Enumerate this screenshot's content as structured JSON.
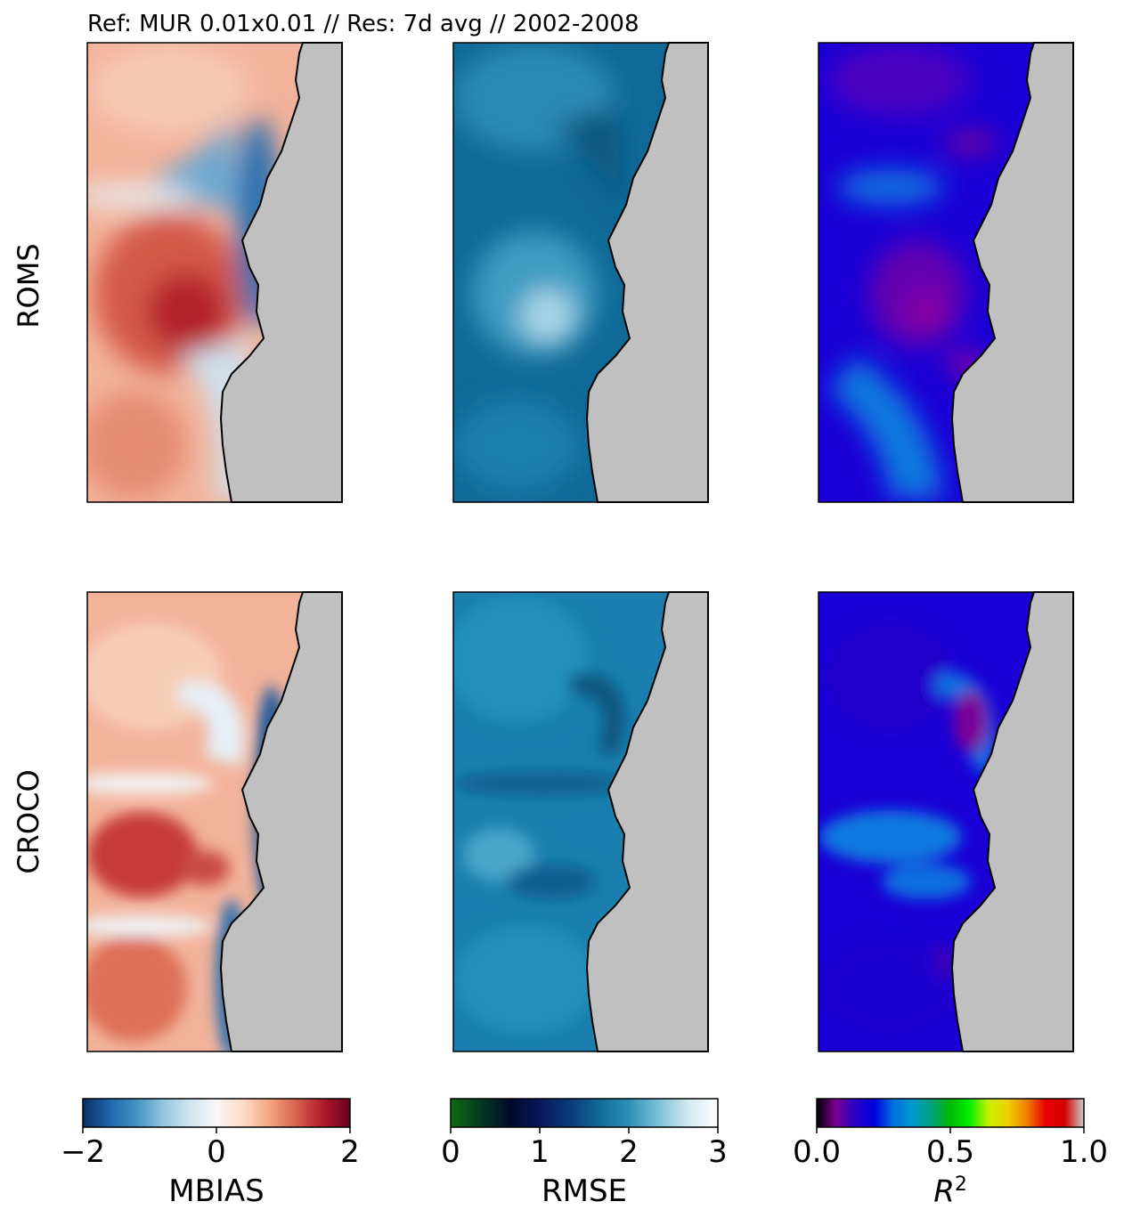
{
  "title": "Ref: MUR 0.01x0.01 // Res: 7d avg // 2002-2008",
  "rows": [
    "ROMS",
    "CROCO"
  ],
  "colorbars": [
    {
      "label": "MBIAS",
      "ticks": [
        "−2",
        "0",
        "2"
      ],
      "range": [
        -2,
        2
      ],
      "stops": [
        "#053061",
        "#2166ac",
        "#4393c3",
        "#92c5de",
        "#d1e5f0",
        "#f7f7f7",
        "#fddbc7",
        "#f4a582",
        "#d6604d",
        "#b2182b",
        "#67001f"
      ]
    },
    {
      "label": "RMSE",
      "ticks": [
        "0",
        "1",
        "2",
        "3"
      ],
      "range": [
        0,
        3
      ],
      "stops": [
        "#0a6d12",
        "#053a20",
        "#020a2a",
        "#06185a",
        "#0a3a7a",
        "#0f6a98",
        "#2d91b8",
        "#7cc0d6",
        "#d2eaf2",
        "#ffffff"
      ]
    },
    {
      "label": "R",
      "label_sup": "2",
      "ticks": [
        "0.0",
        "0.5",
        "1.0"
      ],
      "range": [
        0,
        1
      ],
      "stops": [
        "#000000",
        "#7a0090",
        "#2a00c8",
        "#0000dd",
        "#0070e0",
        "#0099cc",
        "#00a080",
        "#00b800",
        "#00f000",
        "#c8f000",
        "#f0d000",
        "#f08000",
        "#e80000",
        "#d40000",
        "#cccccc"
      ]
    }
  ],
  "panel_colors": {
    "land": "#c0c0c0",
    "roms_mbias": {
      "base": "#f3b39a",
      "warm_core": "#b4232b",
      "cool_edge": "#2b70b0"
    },
    "roms_rmse": {
      "base": "#0f6a98",
      "light": "#b4dceb"
    },
    "roms_r2": {
      "base": "#1a00d6",
      "blue": "#0070e0",
      "purple": "#7c0098"
    },
    "croco_mbias": {
      "base": "#f3b39a",
      "warm_core": "#c0353a",
      "cool_edge": "#1a5a9e"
    },
    "croco_rmse": {
      "base": "#1a7fae",
      "light": "#6fb8d4"
    },
    "croco_r2": {
      "base": "#1a00d6",
      "blue": "#0070e0",
      "purple": "#7c0098"
    }
  },
  "chart_data": [
    {
      "type": "heatmap",
      "title": "Ref: MUR 0.01x0.01 // Res: 7d avg // 2002-2008",
      "row": "ROMS",
      "variable": "MBIAS",
      "range": [
        -2,
        2
      ]
    },
    {
      "type": "heatmap",
      "row": "ROMS",
      "variable": "RMSE",
      "range": [
        0,
        3
      ]
    },
    {
      "type": "heatmap",
      "row": "ROMS",
      "variable": "R^2",
      "range": [
        0,
        1
      ]
    },
    {
      "type": "heatmap",
      "row": "CROCO",
      "variable": "MBIAS",
      "range": [
        -2,
        2
      ]
    },
    {
      "type": "heatmap",
      "row": "CROCO",
      "variable": "RMSE",
      "range": [
        0,
        3
      ]
    },
    {
      "type": "heatmap",
      "row": "CROCO",
      "variable": "R^2",
      "range": [
        0,
        1
      ]
    }
  ]
}
